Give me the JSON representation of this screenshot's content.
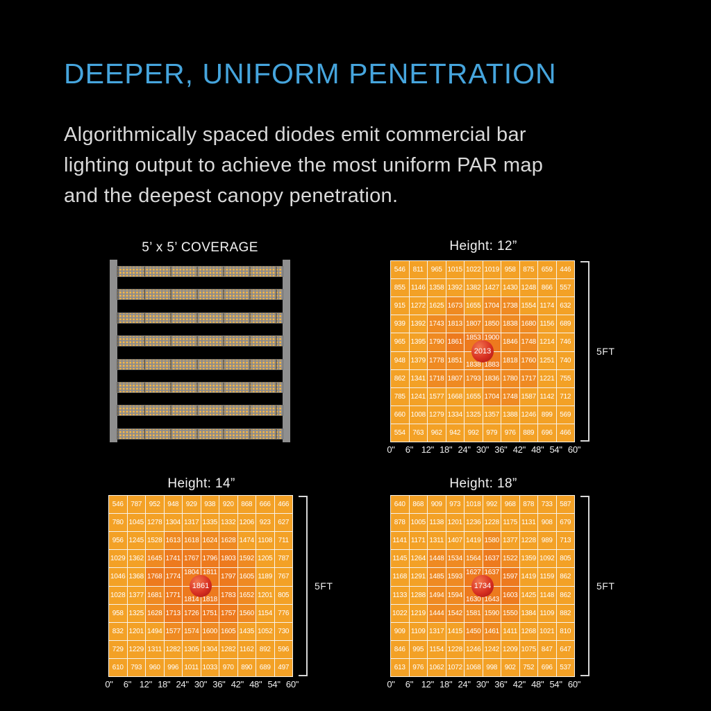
{
  "theme": {
    "background": "#000000",
    "accent_blue": "#46A5DD",
    "body_text": "#DADADA",
    "cell_base": "#F3A126",
    "cell_mid": "#EF8A22",
    "cell_hot": "#ED7A1E",
    "grid_line": "#F7F3EA",
    "peak_red": "#D83022",
    "rail_gray": "#8F8F8F",
    "diode_orange": "#FFC14A"
  },
  "header": {
    "title": "DEEPER, UNIFORM PENETRATION",
    "body_lines": [
      "Algorithmically spaced diodes emit commercial bar",
      "lighting output to achieve the most uniform PAR map",
      "and the deepest canopy penetration."
    ]
  },
  "coverage_panel": {
    "title": "5’ x 5’ COVERAGE",
    "bar_count": 8
  },
  "chart_data": [
    {
      "type": "heatmap",
      "title": "Height: 12”",
      "side_label": "5FT",
      "peak_value": 2013,
      "x_ticks": [
        "0\"",
        "6\"",
        "12\"",
        "18\"",
        "24\"",
        "30\"",
        "36\"",
        "42\"",
        "48\"",
        "54\"",
        "60\""
      ],
      "values": [
        [
          546,
          811,
          965,
          1015,
          1022,
          1019,
          958,
          875,
          659,
          446
        ],
        [
          855,
          1146,
          1358,
          1392,
          1382,
          1427,
          1430,
          1248,
          866,
          557
        ],
        [
          915,
          1272,
          1625,
          1673,
          1655,
          1704,
          1738,
          1554,
          1174,
          632
        ],
        [
          939,
          1392,
          1743,
          1813,
          1807,
          1850,
          1838,
          1680,
          1156,
          689
        ],
        [
          965,
          1395,
          1790,
          1861,
          1853,
          1900,
          1846,
          1748,
          1214,
          746
        ],
        [
          948,
          1379,
          1778,
          1851,
          1838,
          1883,
          1818,
          1760,
          1251,
          740
        ],
        [
          862,
          1341,
          1718,
          1807,
          1793,
          1836,
          1780,
          1717,
          1221,
          755
        ],
        [
          785,
          1241,
          1577,
          1668,
          1655,
          1704,
          1748,
          1587,
          1142,
          712
        ],
        [
          660,
          1008,
          1279,
          1334,
          1325,
          1357,
          1388,
          1246,
          899,
          569
        ],
        [
          554,
          763,
          962,
          942,
          992,
          979,
          976,
          889,
          696,
          466
        ]
      ]
    },
    {
      "type": "heatmap",
      "title": "Height: 14”",
      "side_label": "5FT",
      "peak_value": 1861,
      "x_ticks": [
        "0\"",
        "6\"",
        "12\"",
        "18\"",
        "24\"",
        "30\"",
        "36\"",
        "42\"",
        "48\"",
        "54\"",
        "60\""
      ],
      "values": [
        [
          546,
          787,
          952,
          948,
          929,
          938,
          920,
          868,
          666,
          466
        ],
        [
          780,
          1045,
          1278,
          1304,
          1317,
          1335,
          1332,
          1206,
          923,
          627
        ],
        [
          956,
          1245,
          1528,
          1613,
          1618,
          1624,
          1628,
          1474,
          1108,
          711
        ],
        [
          1029,
          1362,
          1645,
          1741,
          1767,
          1796,
          1803,
          1592,
          1205,
          787
        ],
        [
          1046,
          1368,
          1768,
          1774,
          1804,
          1811,
          1797,
          1605,
          1189,
          767
        ],
        [
          1028,
          1377,
          1681,
          1771,
          1814,
          1818,
          1783,
          1652,
          1201,
          805
        ],
        [
          958,
          1325,
          1628,
          1713,
          1726,
          1751,
          1757,
          1560,
          1154,
          776
        ],
        [
          832,
          1201,
          1494,
          1577,
          1574,
          1600,
          1605,
          1435,
          1052,
          730
        ],
        [
          729,
          1229,
          1311,
          1282,
          1305,
          1304,
          1282,
          1162,
          892,
          596
        ],
        [
          610,
          793,
          960,
          996,
          1011,
          1033,
          970,
          890,
          689,
          497
        ]
      ]
    },
    {
      "type": "heatmap",
      "title": "Height: 18”",
      "side_label": "5FT",
      "peak_value": 1734,
      "x_ticks": [
        "0\"",
        "6\"",
        "12\"",
        "18\"",
        "24\"",
        "30\"",
        "36\"",
        "42\"",
        "48\"",
        "54\"",
        "60\""
      ],
      "values": [
        [
          640,
          868,
          909,
          973,
          1018,
          992,
          968,
          878,
          733,
          587
        ],
        [
          878,
          1005,
          1138,
          1201,
          1236,
          1228,
          1175,
          1131,
          908,
          679
        ],
        [
          1141,
          1171,
          1311,
          1407,
          1419,
          1580,
          1377,
          1228,
          989,
          713
        ],
        [
          1145,
          1264,
          1448,
          1534,
          1564,
          1637,
          1522,
          1359,
          1092,
          805
        ],
        [
          1168,
          1291,
          1485,
          1593,
          1627,
          1637,
          1597,
          1419,
          1159,
          862
        ],
        [
          1133,
          1288,
          1494,
          1594,
          1630,
          1643,
          1603,
          1425,
          1148,
          862
        ],
        [
          1022,
          1219,
          1444,
          1542,
          1581,
          1590,
          1550,
          1384,
          1109,
          882
        ],
        [
          909,
          1109,
          1317,
          1415,
          1450,
          1461,
          1411,
          1268,
          1021,
          810
        ],
        [
          846,
          995,
          1154,
          1228,
          1246,
          1242,
          1209,
          1075,
          847,
          647
        ],
        [
          613,
          976,
          1062,
          1072,
          1068,
          998,
          902,
          752,
          696,
          537
        ]
      ]
    }
  ],
  "layout_labels": {
    "note": ""
  }
}
